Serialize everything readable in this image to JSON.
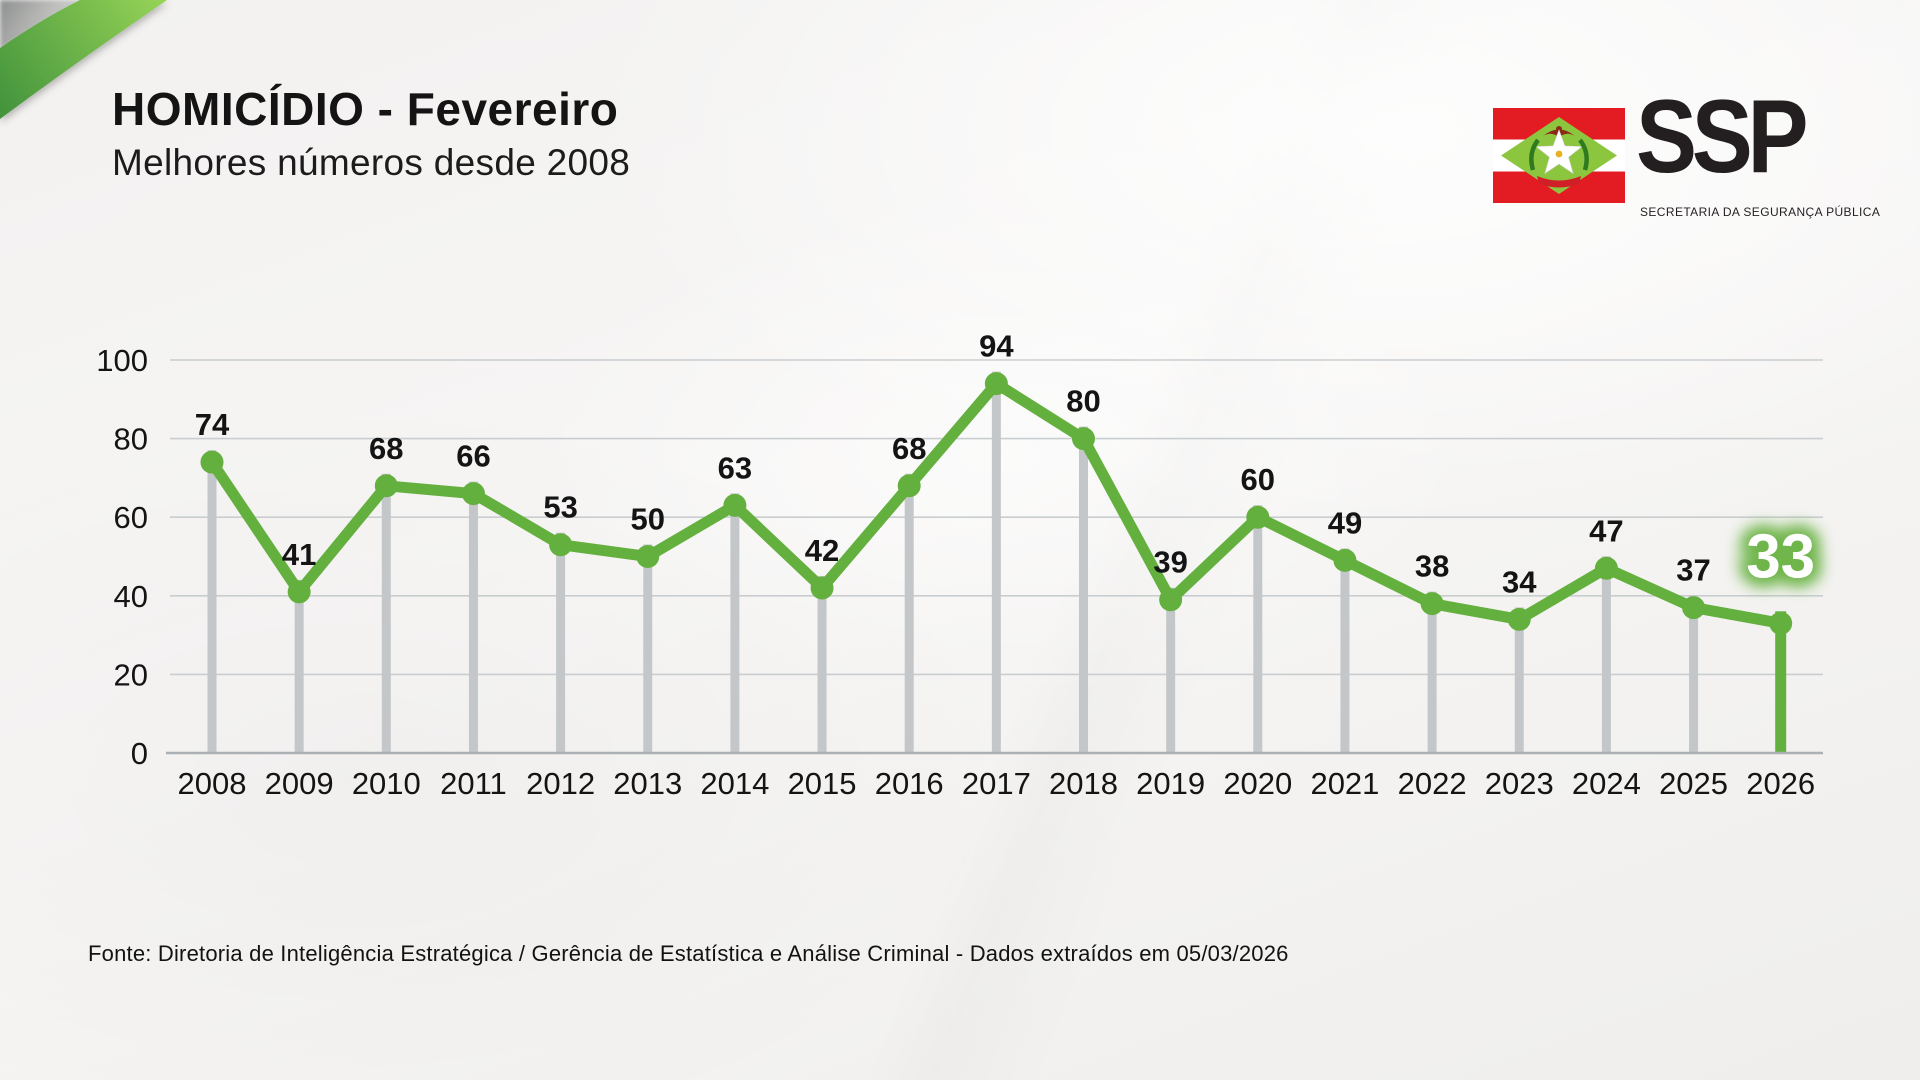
{
  "header": {
    "title": "HOMICÍDIO - Fevereiro",
    "subtitle": "Melhores números desde 2008"
  },
  "logo": {
    "abbr": "SSP",
    "name": "SECRETARIA DA SEGURANÇA PÚBLICA",
    "flag_icon": "santa-catarina-flag",
    "flag_colors": {
      "red": "#e31c23",
      "white": "#ffffff",
      "diamond_green": "#8cc63f"
    }
  },
  "chart_data": {
    "type": "line",
    "title": "HOMICÍDIO - Fevereiro",
    "categories": [
      "2008",
      "2009",
      "2010",
      "2011",
      "2012",
      "2013",
      "2014",
      "2015",
      "2016",
      "2017",
      "2018",
      "2019",
      "2020",
      "2021",
      "2022",
      "2023",
      "2024",
      "2025",
      "2026"
    ],
    "values": [
      74,
      41,
      68,
      66,
      53,
      50,
      63,
      42,
      68,
      94,
      80,
      39,
      60,
      49,
      38,
      34,
      47,
      37,
      33
    ],
    "xlabel": "",
    "ylabel": "",
    "ylim": [
      0,
      100
    ],
    "yticks": [
      0,
      20,
      40,
      60,
      80,
      100
    ],
    "grid": true,
    "legend": false,
    "marker": "circle",
    "drop_lines": true,
    "highlight": {
      "category": "2026",
      "value": 33,
      "style": "white-text-green-glow"
    }
  },
  "footer": {
    "source": "Fonte: Diretoria de Inteligência Estratégica / Gerência de Estatística e Análise Criminal - Dados extraídos em 05/03/2026"
  },
  "colors": {
    "accent_green": "#64b03e",
    "glow_green": "#6ab344",
    "swoosh_green_dark": "#41923c",
    "swoosh_green_light": "#98d457",
    "drop_line_gray": "#c4c7c9",
    "grid": "#c9cdd0",
    "axis": "#aab0b3",
    "text": "#141414"
  }
}
